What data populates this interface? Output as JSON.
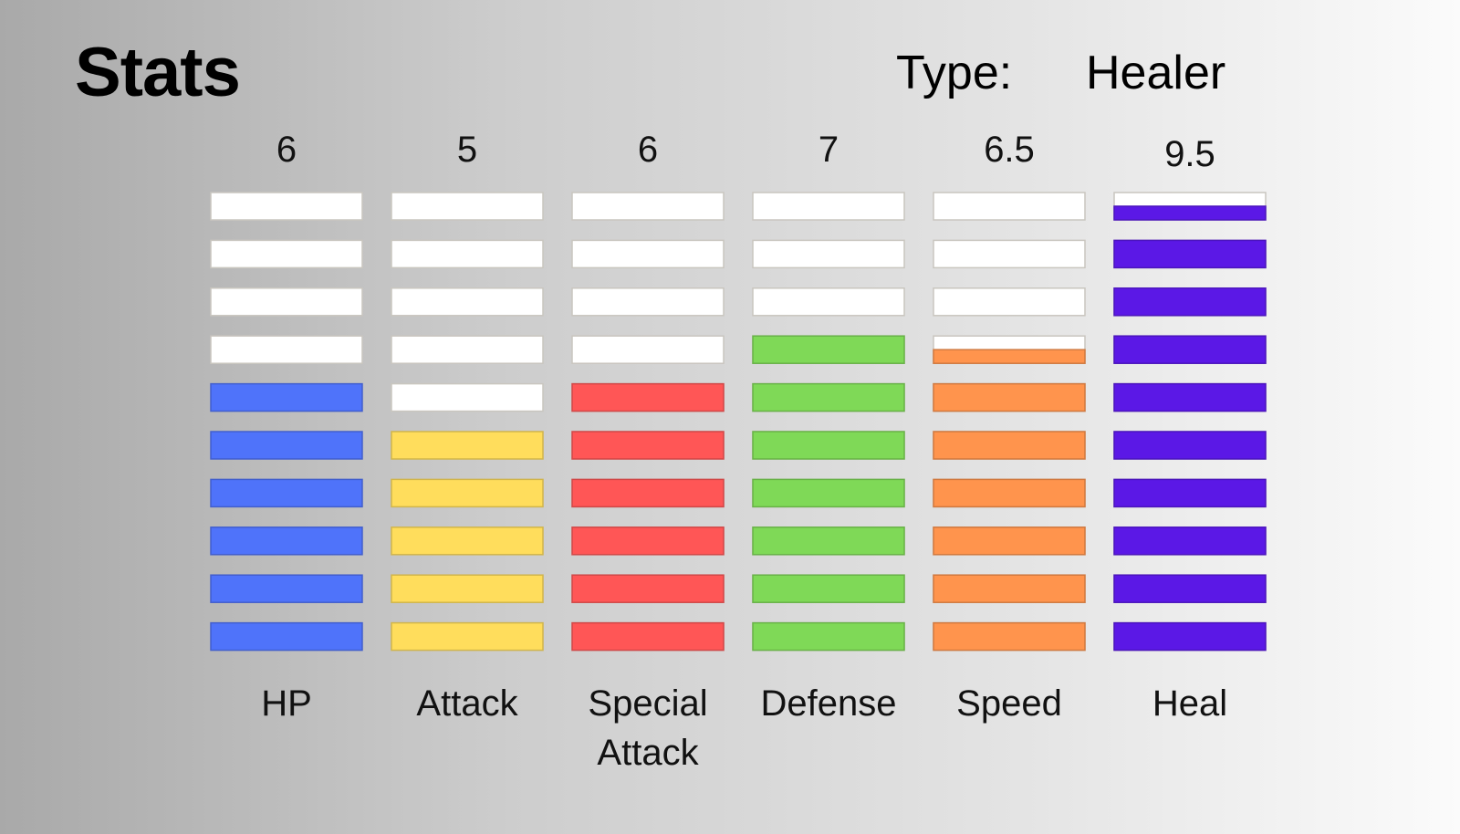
{
  "page": {
    "title": "Stats",
    "type_label": "Type:",
    "type_value": "Healer"
  },
  "chart_data": {
    "type": "bar",
    "segments_per_bar": 10,
    "categories": [
      "HP",
      "Attack",
      "Special Attack",
      "Defense",
      "Speed",
      "Heal"
    ],
    "category_lines": [
      [
        "HP"
      ],
      [
        "Attack"
      ],
      [
        "Special",
        "Attack"
      ],
      [
        "Defense"
      ],
      [
        "Speed"
      ],
      [
        "Heal"
      ]
    ],
    "values": [
      6,
      5,
      6,
      7,
      6.5,
      9.5
    ],
    "value_labels": [
      "6",
      "5",
      "6",
      "7",
      "6.5",
      "9.5"
    ],
    "colors": [
      "#4f73fa",
      "#ffdd5c",
      "#ff5656",
      "#7fd957",
      "#ff944d",
      "#5b18e6"
    ],
    "empty_color": "#ffffff",
    "ylim": [
      0,
      10
    ]
  }
}
